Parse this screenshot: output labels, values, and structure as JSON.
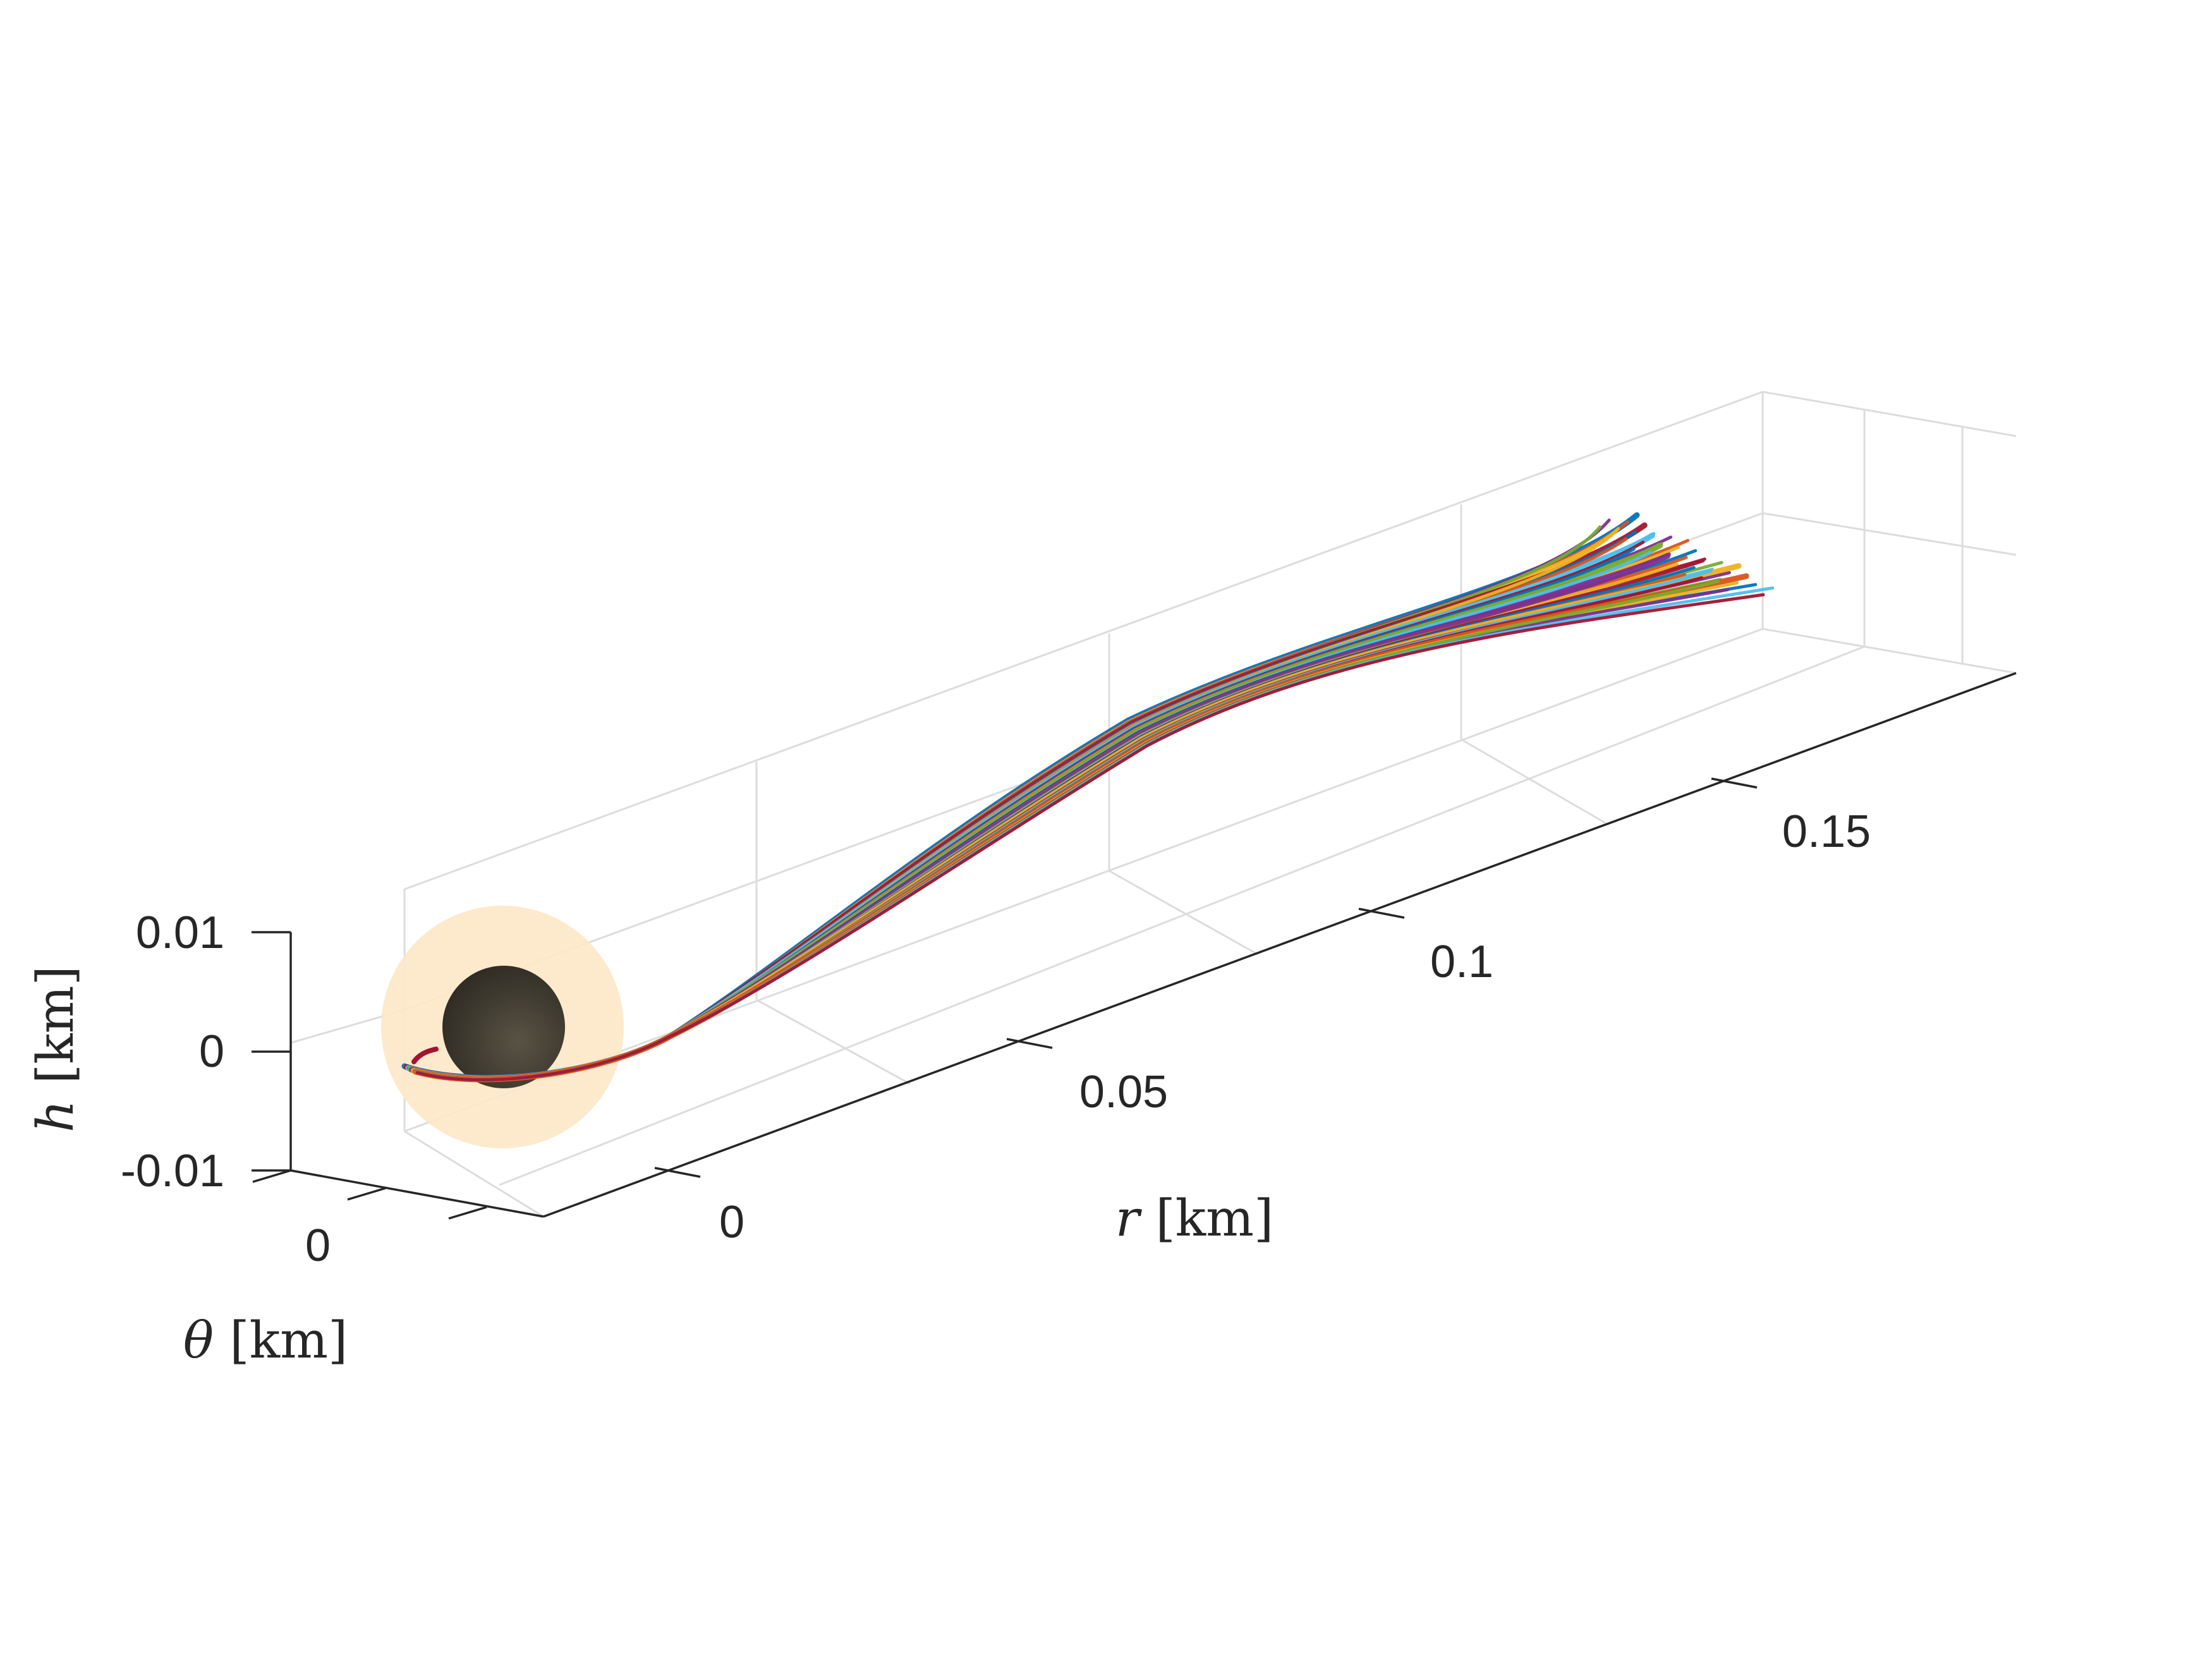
{
  "chart_data": {
    "type": "line",
    "subtype": "3d-trajectory",
    "title": "",
    "axes": {
      "x": {
        "label_var": "r",
        "label_unit": "[km]",
        "ticks": [
          0,
          0.05,
          0.1,
          0.15
        ],
        "tick_labels": [
          "0",
          "0.05",
          "0.1",
          "0.15"
        ],
        "lim": [
          -0.01,
          0.18
        ]
      },
      "y": {
        "label_var": "θ",
        "label_unit": "[km]",
        "ticks": [
          -0.01,
          0,
          0.01
        ],
        "tick_labels": [
          "",
          "0",
          ""
        ],
        "lim": [
          -0.012,
          0.012
        ]
      },
      "z": {
        "label_var": "h",
        "label_unit": "[km]",
        "ticks": [
          -0.01,
          0,
          0.01
        ],
        "tick_labels": [
          "-0.01",
          "0",
          "0.01"
        ],
        "lim": [
          -0.01,
          0.01
        ]
      }
    },
    "grid": true,
    "box": false,
    "view": "3d-perspective",
    "body": {
      "center": [
        0,
        0,
        0.001
      ],
      "radius": 0.0035,
      "color": "#3e3a30"
    },
    "keep_out_zone": {
      "center": [
        0,
        0,
        0.001
      ],
      "radius": 0.0085,
      "color": "#fde8c6"
    },
    "trajectory_bundle": {
      "count": 7,
      "start": {
        "r": -0.008,
        "theta": 0.0,
        "h": -0.0025
      },
      "end": {
        "r": 0.175,
        "theta": 0.0,
        "h": 0.0045
      },
      "colors": [
        "#0072bd",
        "#d95319",
        "#edb120",
        "#7e2f8e",
        "#77ac30",
        "#4dbeee",
        "#a2142f"
      ]
    }
  }
}
